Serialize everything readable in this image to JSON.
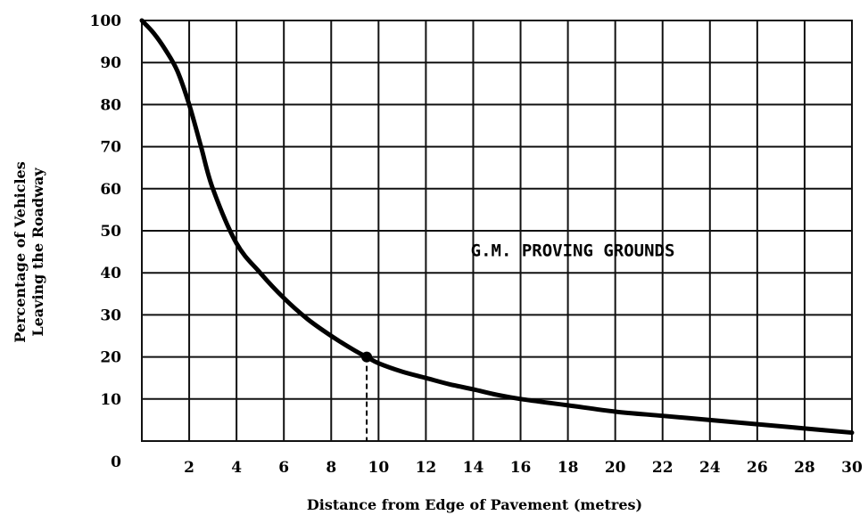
{
  "chart_data": {
    "type": "line",
    "title": "",
    "xlabel": "Distance from Edge of Pavement (metres)",
    "ylabel_line1": "Percentage of Vehicles",
    "ylabel_line2": "Leaving the Roadway",
    "xlim": [
      0,
      30
    ],
    "ylim": [
      0,
      100
    ],
    "x_ticks": [
      2,
      4,
      6,
      8,
      10,
      12,
      14,
      16,
      18,
      20,
      22,
      24,
      26,
      28,
      30
    ],
    "y_ticks": [
      0,
      10,
      20,
      30,
      40,
      50,
      60,
      70,
      80,
      90,
      100
    ],
    "x_grid_step": 2,
    "y_grid_step": 10,
    "grid": true,
    "series": [
      {
        "x": [
          0,
          0.5,
          1,
          1.5,
          2,
          2.5,
          3,
          4,
          5,
          6,
          7,
          8,
          9,
          9.5,
          10,
          11,
          12,
          13,
          14,
          15,
          16,
          18,
          20,
          22,
          24,
          26,
          28,
          30
        ],
        "y": [
          100,
          97,
          93,
          88,
          80,
          70,
          60,
          47,
          40,
          34,
          29,
          25,
          21.5,
          20,
          18.5,
          16.5,
          15,
          13.5,
          12.3,
          11,
          10,
          8.5,
          7,
          6,
          5,
          4,
          3,
          2
        ]
      }
    ],
    "highlight_point": {
      "x": 9.5,
      "y": 20
    },
    "annotation": {
      "text": "G.M. PROVING GROUNDS",
      "x": 20,
      "y": 45
    }
  }
}
